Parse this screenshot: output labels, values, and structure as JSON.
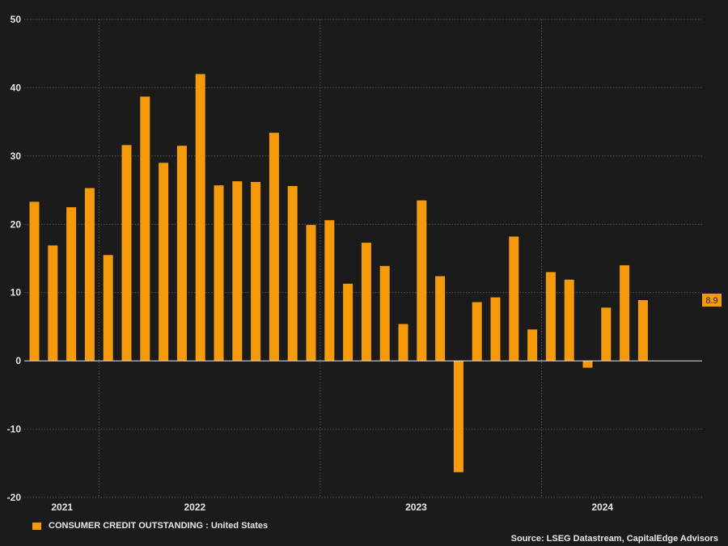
{
  "chart_data": {
    "type": "bar",
    "title": "",
    "xlabel": "",
    "ylabel": "",
    "ylim": [
      -20,
      50
    ],
    "yticks": [
      "50",
      "40",
      "30",
      "20",
      "10",
      "0",
      "-10",
      "-20"
    ],
    "ytick_values": [
      50,
      40,
      30,
      20,
      10,
      0,
      -10,
      -20
    ],
    "year_labels": [
      {
        "label": "2021",
        "index": 1.5
      },
      {
        "label": "2022",
        "index": 8.7
      },
      {
        "label": "2023",
        "index": 20.7
      },
      {
        "label": "2024",
        "index": 30.8
      }
    ],
    "year_boundaries": [
      3.5,
      15.5,
      27.5
    ],
    "series": [
      {
        "name": "CONSUMER CREDIT OUTSTANDING : United States",
        "color": "#f59b0b",
        "values": [
          23.3,
          16.9,
          22.5,
          25.3,
          15.5,
          31.6,
          38.7,
          29.0,
          31.5,
          42.0,
          25.7,
          26.3,
          26.2,
          33.4,
          25.6,
          19.9,
          20.6,
          11.3,
          17.3,
          13.9,
          5.4,
          23.5,
          12.4,
          -16.3,
          8.6,
          9.3,
          18.2,
          4.6,
          13.0,
          11.9,
          -1.0,
          7.8,
          14.0,
          8.9
        ]
      }
    ],
    "last_value_label": "8.9",
    "legend_position": "bottom-left",
    "grid": true
  },
  "footer": {
    "source": "Source: LSEG Datastream, CapitalEdge Advisors"
  }
}
